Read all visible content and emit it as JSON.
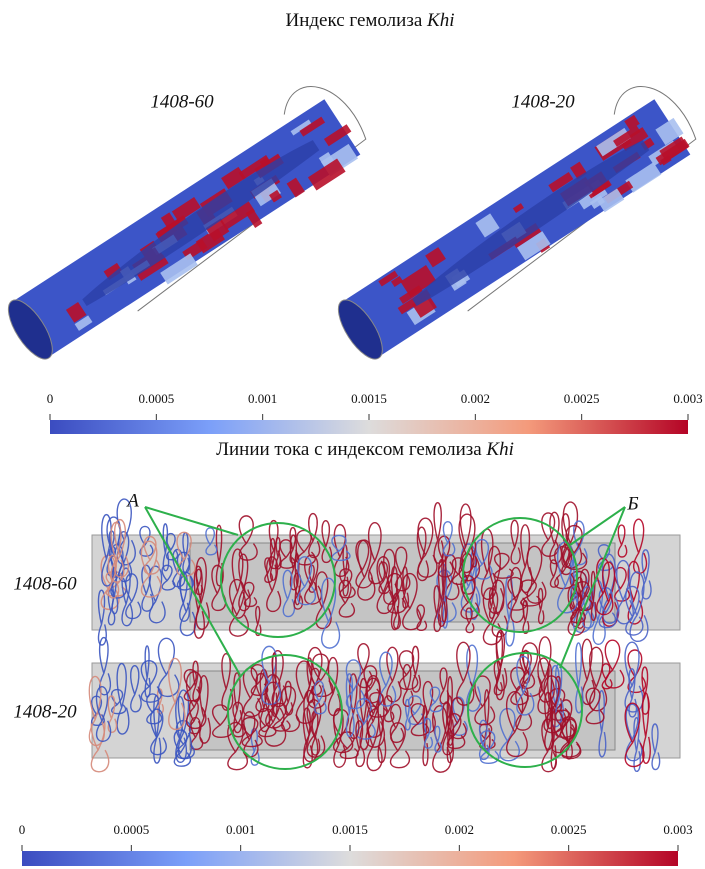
{
  "section_top": {
    "title": "Индекс гемолиза",
    "title_symbol": "Khi",
    "panels": [
      "1408-60",
      "1408-20"
    ]
  },
  "colorbars": [
    {
      "lim": [
        0,
        0.003
      ],
      "ticks": [
        0,
        0.0005,
        0.001,
        0.0015,
        0.002,
        0.0025,
        0.003
      ]
    },
    {
      "lim": [
        0,
        0.003
      ],
      "ticks": [
        0,
        0.0005,
        0.001,
        0.0015,
        0.002,
        0.0025,
        0.003
      ]
    }
  ],
  "section_bottom": {
    "title": "Линии тока с индексом гемолиза",
    "title_symbol": "Khi",
    "rows": [
      "1408-60",
      "1408-20"
    ],
    "annotations": [
      "А",
      "Б"
    ]
  }
}
